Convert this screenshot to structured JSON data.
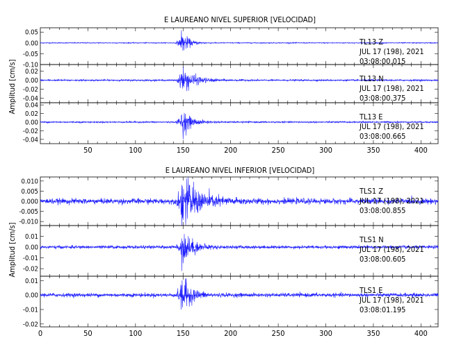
{
  "chart_data": [
    {
      "type": "line",
      "title": "E LAUREANO NIVEL SUPERIOR [VELOCIDAD]",
      "ylabel": "Amplitud [cm/s]",
      "xlim": [
        0,
        418
      ],
      "xticks": [
        50,
        100,
        150,
        200,
        250,
        300,
        350,
        400
      ],
      "series_color": "#1a1aff",
      "panels": [
        {
          "name": "TL13   Z",
          "date": "JUL 17 (198), 2021",
          "time": "03:08:00.015",
          "ylim": [
            -0.1,
            0.07
          ],
          "yticks": [
            "0.05",
            "0.00",
            "-0.05",
            "-0.10"
          ],
          "yvals": [
            0.05,
            0.0,
            -0.05,
            -0.1
          ],
          "noise": 0.0018,
          "peak": 0.05,
          "coda_decay": 7
        },
        {
          "name": "TL13   N",
          "date": "JUL 17 (198), 2021",
          "time": "03:08:00.375",
          "ylim": [
            -0.05,
            0.035
          ],
          "yticks": [
            "0.02",
            "0.00",
            "-0.02",
            "-0.04"
          ],
          "yvals": [
            0.02,
            0.0,
            -0.02,
            -0.04
          ],
          "noise": 0.0015,
          "peak": 0.028,
          "coda_decay": 12
        },
        {
          "name": "TL13   E",
          "date": "JUL 17 (198), 2021",
          "time": "03:08:00.665",
          "ylim": [
            -0.05,
            0.045
          ],
          "yticks": [
            "0.04",
            "0.02",
            "0.00",
            "-0.02",
            "-0.04"
          ],
          "yvals": [
            0.04,
            0.02,
            0.0,
            -0.02,
            -0.04
          ],
          "noise": 0.0015,
          "peak": 0.028,
          "coda_decay": 9
        }
      ]
    },
    {
      "type": "line",
      "title": "E LAUREANO NIVEL INFERIOR [VELOCIDAD]",
      "ylabel": "Amplitud [cm/s]",
      "xlim": [
        0,
        418
      ],
      "xticks": [
        0,
        50,
        100,
        150,
        200,
        250,
        300,
        350,
        400
      ],
      "series_color": "#1a1aff",
      "panels": [
        {
          "name": "TLS1   Z",
          "date": "JUL 17 (198), 2021",
          "time": "03:08:00.855",
          "ylim": [
            -0.012,
            0.012
          ],
          "yticks": [
            "0.010",
            "0.005",
            "0.000",
            "-0.005",
            "-0.010"
          ],
          "yvals": [
            0.01,
            0.005,
            0.0,
            -0.005,
            -0.01
          ],
          "noise": 0.0011,
          "peak": 0.011,
          "coda_decay": 18
        },
        {
          "name": "TLS1   N",
          "date": "JUL 17 (198), 2021",
          "time": "03:08:00.605",
          "ylim": [
            -0.027,
            0.02
          ],
          "yticks": [
            "0.01",
            "0.00",
            "-0.01",
            "-0.02"
          ],
          "yvals": [
            0.01,
            0.0,
            -0.01,
            -0.02
          ],
          "noise": 0.0012,
          "peak": 0.016,
          "coda_decay": 10
        },
        {
          "name": "TLS1   E",
          "date": "JUL 17 (198), 2021",
          "time": "03:08:01.195",
          "ylim": [
            -0.022,
            0.013
          ],
          "yticks": [
            "0.01",
            "0.00",
            "-0.01",
            "-0.02"
          ],
          "yvals": [
            0.01,
            0.0,
            -0.01,
            -0.02
          ],
          "noise": 0.0011,
          "peak": 0.012,
          "coda_decay": 9
        }
      ]
    }
  ]
}
